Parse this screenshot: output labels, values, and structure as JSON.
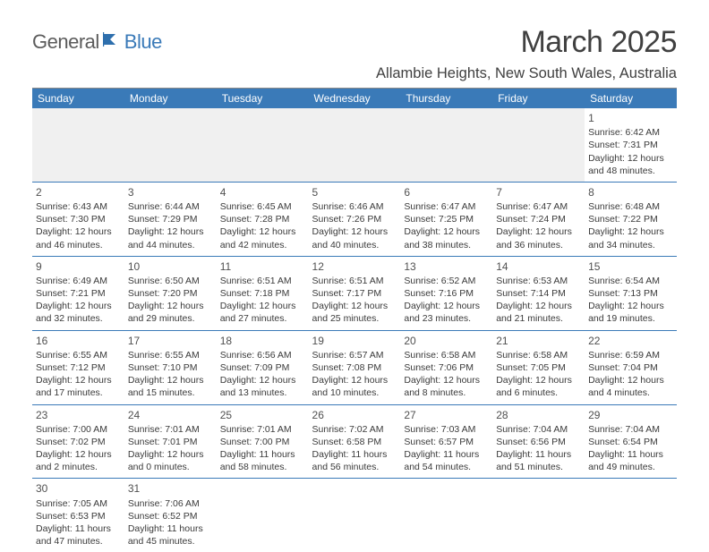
{
  "brand": {
    "text1": "General",
    "text2": "Blue",
    "flag_color": "#2e6fad"
  },
  "title": "March 2025",
  "location": "Allambie Heights, New South Wales, Australia",
  "colors": {
    "header_bg": "#3a7ab8",
    "header_text": "#ffffff",
    "divider": "#888888",
    "cell_border": "#3a7ab8",
    "empty_bg": "#f0f0f0",
    "body_text": "#3a3a3a"
  },
  "day_headers": [
    "Sunday",
    "Monday",
    "Tuesday",
    "Wednesday",
    "Thursday",
    "Friday",
    "Saturday"
  ],
  "weeks": [
    [
      null,
      null,
      null,
      null,
      null,
      null,
      {
        "n": "1",
        "sr": "6:42 AM",
        "ss": "7:31 PM",
        "dl": "12 hours and 48 minutes."
      }
    ],
    [
      {
        "n": "2",
        "sr": "6:43 AM",
        "ss": "7:30 PM",
        "dl": "12 hours and 46 minutes."
      },
      {
        "n": "3",
        "sr": "6:44 AM",
        "ss": "7:29 PM",
        "dl": "12 hours and 44 minutes."
      },
      {
        "n": "4",
        "sr": "6:45 AM",
        "ss": "7:28 PM",
        "dl": "12 hours and 42 minutes."
      },
      {
        "n": "5",
        "sr": "6:46 AM",
        "ss": "7:26 PM",
        "dl": "12 hours and 40 minutes."
      },
      {
        "n": "6",
        "sr": "6:47 AM",
        "ss": "7:25 PM",
        "dl": "12 hours and 38 minutes."
      },
      {
        "n": "7",
        "sr": "6:47 AM",
        "ss": "7:24 PM",
        "dl": "12 hours and 36 minutes."
      },
      {
        "n": "8",
        "sr": "6:48 AM",
        "ss": "7:22 PM",
        "dl": "12 hours and 34 minutes."
      }
    ],
    [
      {
        "n": "9",
        "sr": "6:49 AM",
        "ss": "7:21 PM",
        "dl": "12 hours and 32 minutes."
      },
      {
        "n": "10",
        "sr": "6:50 AM",
        "ss": "7:20 PM",
        "dl": "12 hours and 29 minutes."
      },
      {
        "n": "11",
        "sr": "6:51 AM",
        "ss": "7:18 PM",
        "dl": "12 hours and 27 minutes."
      },
      {
        "n": "12",
        "sr": "6:51 AM",
        "ss": "7:17 PM",
        "dl": "12 hours and 25 minutes."
      },
      {
        "n": "13",
        "sr": "6:52 AM",
        "ss": "7:16 PM",
        "dl": "12 hours and 23 minutes."
      },
      {
        "n": "14",
        "sr": "6:53 AM",
        "ss": "7:14 PM",
        "dl": "12 hours and 21 minutes."
      },
      {
        "n": "15",
        "sr": "6:54 AM",
        "ss": "7:13 PM",
        "dl": "12 hours and 19 minutes."
      }
    ],
    [
      {
        "n": "16",
        "sr": "6:55 AM",
        "ss": "7:12 PM",
        "dl": "12 hours and 17 minutes."
      },
      {
        "n": "17",
        "sr": "6:55 AM",
        "ss": "7:10 PM",
        "dl": "12 hours and 15 minutes."
      },
      {
        "n": "18",
        "sr": "6:56 AM",
        "ss": "7:09 PM",
        "dl": "12 hours and 13 minutes."
      },
      {
        "n": "19",
        "sr": "6:57 AM",
        "ss": "7:08 PM",
        "dl": "12 hours and 10 minutes."
      },
      {
        "n": "20",
        "sr": "6:58 AM",
        "ss": "7:06 PM",
        "dl": "12 hours and 8 minutes."
      },
      {
        "n": "21",
        "sr": "6:58 AM",
        "ss": "7:05 PM",
        "dl": "12 hours and 6 minutes."
      },
      {
        "n": "22",
        "sr": "6:59 AM",
        "ss": "7:04 PM",
        "dl": "12 hours and 4 minutes."
      }
    ],
    [
      {
        "n": "23",
        "sr": "7:00 AM",
        "ss": "7:02 PM",
        "dl": "12 hours and 2 minutes."
      },
      {
        "n": "24",
        "sr": "7:01 AM",
        "ss": "7:01 PM",
        "dl": "12 hours and 0 minutes."
      },
      {
        "n": "25",
        "sr": "7:01 AM",
        "ss": "7:00 PM",
        "dl": "11 hours and 58 minutes."
      },
      {
        "n": "26",
        "sr": "7:02 AM",
        "ss": "6:58 PM",
        "dl": "11 hours and 56 minutes."
      },
      {
        "n": "27",
        "sr": "7:03 AM",
        "ss": "6:57 PM",
        "dl": "11 hours and 54 minutes."
      },
      {
        "n": "28",
        "sr": "7:04 AM",
        "ss": "6:56 PM",
        "dl": "11 hours and 51 minutes."
      },
      {
        "n": "29",
        "sr": "7:04 AM",
        "ss": "6:54 PM",
        "dl": "11 hours and 49 minutes."
      }
    ],
    [
      {
        "n": "30",
        "sr": "7:05 AM",
        "ss": "6:53 PM",
        "dl": "11 hours and 47 minutes."
      },
      {
        "n": "31",
        "sr": "7:06 AM",
        "ss": "6:52 PM",
        "dl": "11 hours and 45 minutes."
      },
      null,
      null,
      null,
      null,
      null
    ]
  ],
  "labels": {
    "sunrise": "Sunrise: ",
    "sunset": "Sunset: ",
    "daylight": "Daylight: "
  }
}
